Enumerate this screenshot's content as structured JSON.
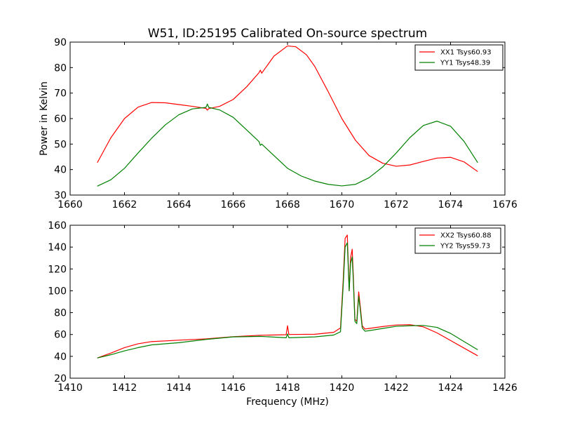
{
  "title": "W51, ID:25195 Calibrated On-source spectrum",
  "chart_data": [
    {
      "type": "line",
      "title": "W51, ID:25195 Calibrated On-source spectrum",
      "xlabel": "",
      "ylabel": "Power in Kelvin",
      "xlim": [
        1660,
        1676
      ],
      "ylim": [
        30,
        90
      ],
      "xticks": [
        "1660",
        "1662",
        "1664",
        "1666",
        "1668",
        "1670",
        "1672",
        "1674",
        "1676"
      ],
      "yticks": [
        "30",
        "40",
        "50",
        "60",
        "70",
        "80",
        "90"
      ],
      "grid": false,
      "legend": "top-right",
      "series": [
        {
          "name": "XX1 Tsys60.93",
          "color": "#ff0000",
          "x": [
            1661.0,
            1661.5,
            1662.0,
            1662.5,
            1663.0,
            1663.5,
            1664.0,
            1664.5,
            1665.0,
            1665.05,
            1665.1,
            1665.5,
            1666.0,
            1666.5,
            1666.95,
            1667.0,
            1667.05,
            1667.5,
            1668.0,
            1668.3,
            1668.7,
            1669.0,
            1669.5,
            1670.0,
            1670.5,
            1671.0,
            1671.5,
            1672.0,
            1672.5,
            1673.0,
            1673.5,
            1674.0,
            1674.5,
            1675.0
          ],
          "y": [
            42.7,
            52.5,
            60.0,
            64.5,
            66.3,
            66.2,
            65.5,
            64.8,
            64.0,
            63.3,
            63.9,
            64.8,
            67.5,
            72.5,
            78.0,
            79.0,
            77.8,
            84.5,
            88.5,
            88.2,
            85.0,
            80.5,
            70.5,
            60.0,
            51.5,
            45.5,
            42.5,
            41.3,
            41.8,
            43.2,
            44.5,
            44.8,
            43.0,
            39.2
          ]
        },
        {
          "name": "YY1 Tsys48.39",
          "color": "#008000",
          "x": [
            1661.0,
            1661.5,
            1662.0,
            1662.5,
            1663.0,
            1663.5,
            1664.0,
            1664.5,
            1665.0,
            1665.05,
            1665.1,
            1665.5,
            1666.0,
            1666.5,
            1666.95,
            1667.0,
            1667.05,
            1667.5,
            1668.0,
            1668.5,
            1669.0,
            1669.5,
            1670.0,
            1670.5,
            1671.0,
            1671.5,
            1672.0,
            1672.5,
            1673.0,
            1673.5,
            1674.0,
            1674.5,
            1675.0
          ],
          "y": [
            33.5,
            36.0,
            40.5,
            46.5,
            52.3,
            57.5,
            61.5,
            63.8,
            64.4,
            65.7,
            64.4,
            63.4,
            60.5,
            55.5,
            51.0,
            49.5,
            50.0,
            45.5,
            40.5,
            37.5,
            35.5,
            34.2,
            33.6,
            34.2,
            36.8,
            41.0,
            46.5,
            52.5,
            57.3,
            59.0,
            57.0,
            51.0,
            42.7
          ]
        }
      ]
    },
    {
      "type": "line",
      "title": "",
      "xlabel": "Frequency (MHz)",
      "ylabel": "",
      "xlim": [
        1410,
        1426
      ],
      "ylim": [
        20,
        160
      ],
      "xticks": [
        "1410",
        "1412",
        "1414",
        "1416",
        "1418",
        "1420",
        "1422",
        "1424",
        "1426"
      ],
      "yticks": [
        "20",
        "40",
        "60",
        "80",
        "100",
        "120",
        "140",
        "160"
      ],
      "grid": false,
      "legend": "top-right",
      "series": [
        {
          "name": "XX2 Tsys60.88",
          "color": "#ff0000",
          "x": [
            1411.0,
            1411.5,
            1412.0,
            1412.5,
            1413.0,
            1414.0,
            1415.0,
            1416.0,
            1417.0,
            1417.95,
            1418.0,
            1418.05,
            1419.0,
            1419.7,
            1419.95,
            1420.05,
            1420.12,
            1420.2,
            1420.27,
            1420.32,
            1420.38,
            1420.42,
            1420.48,
            1420.55,
            1420.62,
            1420.68,
            1420.75,
            1420.85,
            1421.0,
            1421.5,
            1422.0,
            1422.5,
            1423.0,
            1423.5,
            1424.0,
            1424.5,
            1425.0
          ],
          "y": [
            38.5,
            43.0,
            48.0,
            51.5,
            53.5,
            54.8,
            56.0,
            58.0,
            59.3,
            59.8,
            68.0,
            60.0,
            60.2,
            62.0,
            66.0,
            110.0,
            148.0,
            151.0,
            100.0,
            130.0,
            138.0,
            115.0,
            74.0,
            72.0,
            99.0,
            85.0,
            68.0,
            65.0,
            65.5,
            67.3,
            68.7,
            69.0,
            67.0,
            61.5,
            54.5,
            47.5,
            40.5
          ]
        },
        {
          "name": "YY2 Tsys59.73",
          "color": "#008000",
          "x": [
            1411.0,
            1411.5,
            1412.0,
            1412.5,
            1413.0,
            1414.0,
            1415.0,
            1416.0,
            1417.0,
            1417.95,
            1418.0,
            1418.05,
            1419.0,
            1419.7,
            1419.95,
            1420.05,
            1420.12,
            1420.2,
            1420.27,
            1420.32,
            1420.38,
            1420.42,
            1420.48,
            1420.55,
            1420.62,
            1420.68,
            1420.75,
            1420.85,
            1421.0,
            1421.5,
            1422.0,
            1422.5,
            1423.0,
            1423.5,
            1424.0,
            1424.5,
            1425.0
          ],
          "y": [
            38.5,
            41.5,
            45.0,
            48.0,
            50.5,
            52.5,
            55.5,
            57.8,
            58.3,
            57.0,
            60.5,
            57.0,
            57.8,
            59.5,
            62.5,
            105.0,
            140.0,
            144.0,
            100.0,
            125.0,
            131.0,
            110.0,
            72.0,
            70.0,
            95.0,
            82.0,
            66.0,
            63.0,
            63.5,
            65.5,
            67.5,
            68.0,
            68.3,
            66.5,
            61.0,
            53.5,
            46.0
          ]
        }
      ]
    }
  ]
}
